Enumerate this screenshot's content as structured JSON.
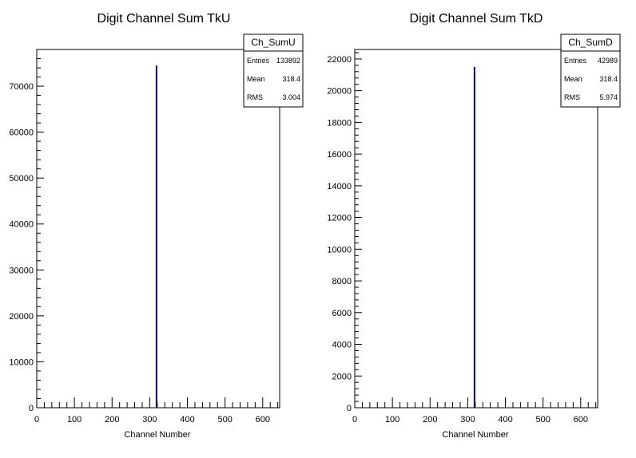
{
  "chart_data": [
    {
      "type": "bar",
      "title": "Digit Channel Sum TkU",
      "xlabel": "Channel Number",
      "ylabel": "",
      "xlim": [
        0,
        645
      ],
      "ylim": [
        0,
        78000
      ],
      "xticks": [
        0,
        100,
        200,
        300,
        400,
        500,
        600
      ],
      "yticks": [
        0,
        10000,
        20000,
        30000,
        40000,
        50000,
        60000,
        70000
      ],
      "grid": false,
      "bars": [
        {
          "x": 318,
          "value": 74500
        }
      ],
      "bar_color": "#000080",
      "stats": {
        "name": "Ch_SumU",
        "rows": [
          {
            "label": "Entries",
            "value": "133892"
          },
          {
            "label": "Mean",
            "value": "318.4"
          },
          {
            "label": "RMS",
            "value": "3.004"
          }
        ]
      }
    },
    {
      "type": "bar",
      "title": "Digit Channel Sum TkD",
      "xlabel": "Channel Number",
      "ylabel": "",
      "xlim": [
        0,
        645
      ],
      "ylim": [
        0,
        22600
      ],
      "xticks": [
        0,
        100,
        200,
        300,
        400,
        500,
        600
      ],
      "yticks": [
        0,
        2000,
        4000,
        6000,
        8000,
        10000,
        12000,
        14000,
        16000,
        18000,
        20000,
        22000
      ],
      "grid": false,
      "bars": [
        {
          "x": 318,
          "value": 21500
        }
      ],
      "bar_color": "#000080",
      "stats": {
        "name": "Ch_SumD",
        "rows": [
          {
            "label": "Entries",
            "value": "42989"
          },
          {
            "label": "Mean",
            "value": "318.4"
          },
          {
            "label": "RMS",
            "value": "5.974"
          }
        ]
      }
    }
  ]
}
